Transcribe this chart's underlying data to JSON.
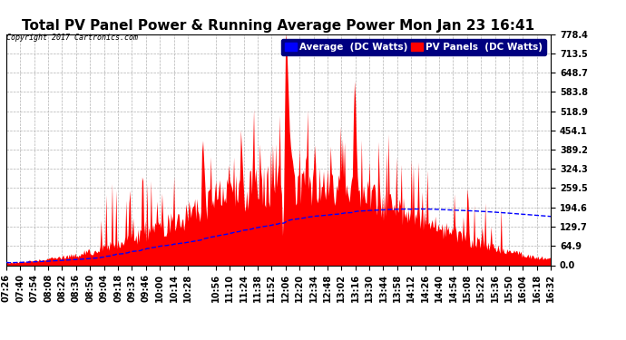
{
  "title": "Total PV Panel Power & Running Average Power Mon Jan 23 16:41",
  "copyright": "Copyright 2017 Cartronics.com",
  "ylabel_right_ticks": [
    0.0,
    64.9,
    129.7,
    194.6,
    259.5,
    324.3,
    389.2,
    454.1,
    518.9,
    583.8,
    648.7,
    713.5,
    778.4
  ],
  "ymax": 778.4,
  "ymin": 0.0,
  "legend_avg_label": "Average  (DC Watts)",
  "legend_pv_label": "PV Panels  (DC Watts)",
  "avg_color": "#0000ff",
  "pv_color": "#ff0000",
  "bg_color": "#ffffff",
  "grid_color": "#aaaaaa",
  "title_fontsize": 11,
  "tick_fontsize": 7,
  "legend_fontsize": 7.5,
  "x_tick_labels": [
    "07:26",
    "07:40",
    "07:54",
    "08:08",
    "08:22",
    "08:36",
    "08:50",
    "09:04",
    "09:18",
    "09:32",
    "09:46",
    "10:00",
    "10:14",
    "10:28",
    "10:56",
    "11:10",
    "11:24",
    "11:38",
    "11:52",
    "12:06",
    "12:20",
    "12:34",
    "12:48",
    "13:02",
    "13:16",
    "13:30",
    "13:44",
    "13:58",
    "14:12",
    "14:26",
    "14:40",
    "14:54",
    "15:08",
    "15:22",
    "15:36",
    "15:50",
    "16:04",
    "16:18",
    "16:32"
  ]
}
